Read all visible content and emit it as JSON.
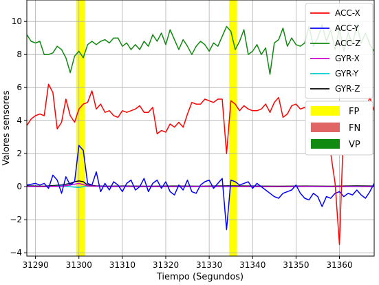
{
  "chart_data": {
    "type": "line",
    "title": "",
    "xlabel": "Tiempo (Segundos)",
    "ylabel": "Valores sensores",
    "xlim": [
      31288,
      31368
    ],
    "ylim": [
      -4.2,
      11.3
    ],
    "x_ticks": [
      31290,
      31300,
      31310,
      31320,
      31330,
      31340,
      31350,
      31360
    ],
    "y_ticks": [
      -4,
      -2,
      0,
      2,
      4,
      6,
      8,
      10
    ],
    "grid": true,
    "legend_position": "top-right",
    "highlight_regions": [
      {
        "label": "FP",
        "color": "#ffff00",
        "ranges": [
          [
            31299.4,
            31301.4
          ],
          [
            31334.6,
            31336.4
          ]
        ]
      }
    ],
    "region_legend": [
      {
        "label": "FP",
        "color": "#ffff00"
      },
      {
        "label": "FN",
        "color": "#e06666"
      },
      {
        "label": "VP",
        "color": "#108a10"
      }
    ],
    "series": [
      {
        "name": "ACC-X",
        "color": "#ff0000",
        "x": [
          31288,
          31289,
          31290,
          31291,
          31292,
          31293,
          31294,
          31295,
          31296,
          31297,
          31298,
          31299,
          31300,
          31301,
          31302,
          31303,
          31304,
          31305,
          31306,
          31307,
          31308,
          31309,
          31310,
          31311,
          31312,
          31313,
          31314,
          31315,
          31316,
          31317,
          31318,
          31319,
          31320,
          31321,
          31322,
          31323,
          31324,
          31325,
          31326,
          31327,
          31328,
          31329,
          31330,
          31331,
          31332,
          31333,
          31334,
          31335,
          31336,
          31337,
          31338,
          31339,
          31340,
          31341,
          31342,
          31343,
          31344,
          31345,
          31346,
          31347,
          31348,
          31349,
          31350,
          31351,
          31352,
          31353,
          31354,
          31355,
          31356,
          31357,
          31358,
          31359,
          31360,
          31361,
          31362,
          31363,
          31364,
          31365,
          31366,
          31367,
          31368
        ],
        "y": [
          3.7,
          4.1,
          4.3,
          4.4,
          4.3,
          6.2,
          5.7,
          3.5,
          3.9,
          5.3,
          4.3,
          3.9,
          4.7,
          5.0,
          5.1,
          5.8,
          4.7,
          5.0,
          4.5,
          4.6,
          4.3,
          4.2,
          4.6,
          4.5,
          4.6,
          4.7,
          4.9,
          4.5,
          4.5,
          4.8,
          3.2,
          3.4,
          3.3,
          3.8,
          3.6,
          3.9,
          3.6,
          4.4,
          5.1,
          5.0,
          5.0,
          5.3,
          5.2,
          5.1,
          5.3,
          5.3,
          2.0,
          5.2,
          5.0,
          4.6,
          4.9,
          4.7,
          4.6,
          4.6,
          4.7,
          5.0,
          4.5,
          5.1,
          5.4,
          4.2,
          4.4,
          4.9,
          5.0,
          4.7,
          4.8,
          4.3,
          3.6,
          4.0,
          2.6,
          2.7,
          2.0,
          0.2,
          -3.5,
          3.9,
          4.2,
          4.8,
          4.5,
          4.9,
          4.7,
          5.4,
          4.6
        ]
      },
      {
        "name": "ACC-Y",
        "color": "#0000ff",
        "x": [
          31288,
          31289,
          31290,
          31291,
          31292,
          31293,
          31294,
          31295,
          31296,
          31297,
          31298,
          31299,
          31300,
          31301,
          31302,
          31303,
          31304,
          31305,
          31306,
          31307,
          31308,
          31309,
          31310,
          31311,
          31312,
          31313,
          31314,
          31315,
          31316,
          31317,
          31318,
          31319,
          31320,
          31321,
          31322,
          31323,
          31324,
          31325,
          31326,
          31327,
          31328,
          31329,
          31330,
          31331,
          31332,
          31333,
          31334,
          31335,
          31336,
          31337,
          31338,
          31339,
          31340,
          31341,
          31342,
          31343,
          31344,
          31345,
          31346,
          31347,
          31348,
          31349,
          31350,
          31351,
          31352,
          31353,
          31354,
          31355,
          31356,
          31357,
          31358,
          31359,
          31360,
          31361,
          31362,
          31363,
          31364,
          31365,
          31366,
          31367,
          31368
        ],
        "y": [
          0.1,
          0.15,
          0.2,
          0.1,
          0.2,
          -0.1,
          0.7,
          0.4,
          -0.4,
          0.6,
          0.1,
          0.3,
          2.5,
          2.2,
          0.2,
          0.1,
          0.9,
          -0.3,
          0.2,
          -0.2,
          0.3,
          0.1,
          -0.3,
          0.2,
          0.4,
          -0.2,
          0.0,
          0.5,
          -0.3,
          0.2,
          0.4,
          -0.1,
          0.3,
          -0.3,
          -0.5,
          0.1,
          -0.2,
          0.4,
          -0.3,
          -0.4,
          0.1,
          0.3,
          0.4,
          -0.1,
          0.2,
          0.5,
          -2.6,
          0.4,
          0.3,
          0.1,
          0.2,
          0.3,
          -0.1,
          0.2,
          0.0,
          -0.2,
          -0.4,
          -0.6,
          -0.7,
          -0.4,
          -0.3,
          -0.2,
          0.1,
          -0.4,
          -0.7,
          -0.8,
          -0.4,
          -0.6,
          -1.2,
          -0.6,
          -0.7,
          -0.4,
          -0.3,
          -0.6,
          -0.4,
          -0.5,
          -0.2,
          -0.5,
          -0.7,
          -0.3,
          0.2
        ]
      },
      {
        "name": "ACC-Z",
        "color": "#118811",
        "x": [
          31288,
          31289,
          31290,
          31291,
          31292,
          31293,
          31294,
          31295,
          31296,
          31297,
          31298,
          31299,
          31300,
          31301,
          31302,
          31303,
          31304,
          31305,
          31306,
          31307,
          31308,
          31309,
          31310,
          31311,
          31312,
          31313,
          31314,
          31315,
          31316,
          31317,
          31318,
          31319,
          31320,
          31321,
          31322,
          31323,
          31324,
          31325,
          31326,
          31327,
          31328,
          31329,
          31330,
          31331,
          31332,
          31333,
          31334,
          31335,
          31336,
          31337,
          31338,
          31339,
          31340,
          31341,
          31342,
          31343,
          31344,
          31345,
          31346,
          31347,
          31348,
          31349,
          31350,
          31351,
          31352,
          31353,
          31354,
          31355,
          31356,
          31357,
          31358,
          31359,
          31360,
          31361,
          31362,
          31363,
          31364,
          31365,
          31366,
          31367,
          31368
        ],
        "y": [
          9.2,
          8.8,
          8.7,
          8.8,
          8.0,
          8.0,
          8.1,
          8.5,
          8.3,
          7.8,
          6.9,
          7.9,
          8.2,
          7.8,
          8.6,
          8.8,
          8.6,
          8.8,
          8.9,
          8.7,
          9.0,
          9.0,
          8.5,
          8.7,
          8.3,
          8.6,
          8.3,
          8.8,
          8.5,
          9.2,
          8.8,
          9.3,
          8.6,
          9.5,
          8.9,
          8.3,
          8.9,
          8.5,
          8.0,
          8.5,
          8.8,
          8.6,
          8.2,
          8.7,
          8.5,
          9.1,
          9.7,
          9.4,
          8.3,
          8.8,
          9.5,
          8.0,
          8.2,
          8.6,
          8.0,
          8.4,
          6.8,
          8.7,
          8.9,
          9.6,
          8.5,
          9.0,
          8.6,
          8.5,
          8.7,
          9.7,
          8.5,
          9.0,
          9.8,
          8.8,
          9.5,
          8.3,
          9.6,
          8.2,
          9.3,
          8.6,
          9.8,
          8.7,
          9.3,
          8.6,
          8.2
        ]
      },
      {
        "name": "GYR-X",
        "color": "#cc00cc",
        "x": [
          31288,
          31292,
          31296,
          31298,
          31300,
          31302,
          31306,
          31310,
          31316,
          31322,
          31328,
          31334,
          31340,
          31346,
          31352,
          31358,
          31364,
          31368
        ],
        "y": [
          0.02,
          0.0,
          0.03,
          0.1,
          0.2,
          0.05,
          0.01,
          0.0,
          0.01,
          0.0,
          0.02,
          0.0,
          0.01,
          0.0,
          0.02,
          0.01,
          0.0,
          0.01
        ]
      },
      {
        "name": "GYR-Y",
        "color": "#00cccc",
        "x": [
          31288,
          31292,
          31296,
          31298,
          31300,
          31302,
          31306,
          31310,
          31316,
          31322,
          31328,
          31334,
          31340,
          31346,
          31352,
          31358,
          31364,
          31368
        ],
        "y": [
          0.0,
          0.0,
          0.05,
          0.0,
          -0.05,
          0.05,
          0.0,
          0.02,
          0.0,
          0.01,
          0.0,
          0.02,
          0.0,
          0.0,
          0.01,
          0.0,
          0.02,
          0.0
        ]
      },
      {
        "name": "GYR-Z",
        "color": "#000000",
        "x": [
          31288,
          31292,
          31296,
          31298,
          31299,
          31300,
          31301,
          31302,
          31304,
          31306,
          31310,
          31316,
          31322,
          31328,
          31334,
          31340,
          31346,
          31352,
          31358,
          31364,
          31368
        ],
        "y": [
          0.05,
          0.03,
          0.1,
          0.2,
          0.3,
          0.35,
          0.3,
          0.1,
          0.05,
          0.03,
          0.04,
          0.03,
          0.04,
          0.03,
          0.05,
          0.04,
          0.03,
          0.04,
          0.03,
          0.05,
          0.04
        ]
      }
    ]
  }
}
